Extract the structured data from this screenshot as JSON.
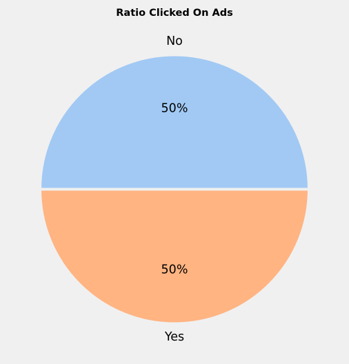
{
  "chart_data": {
    "type": "pie",
    "title": "Ratio Clicked On Ads",
    "categories": [
      "No",
      "Yes"
    ],
    "values": [
      50,
      50
    ],
    "percent_labels": [
      "50%",
      "50%"
    ],
    "colors": [
      "#a1c9f4",
      "#ffb482"
    ],
    "edge_color": "#f0f0f0",
    "background": "#f0f0f0",
    "legend": "none"
  }
}
